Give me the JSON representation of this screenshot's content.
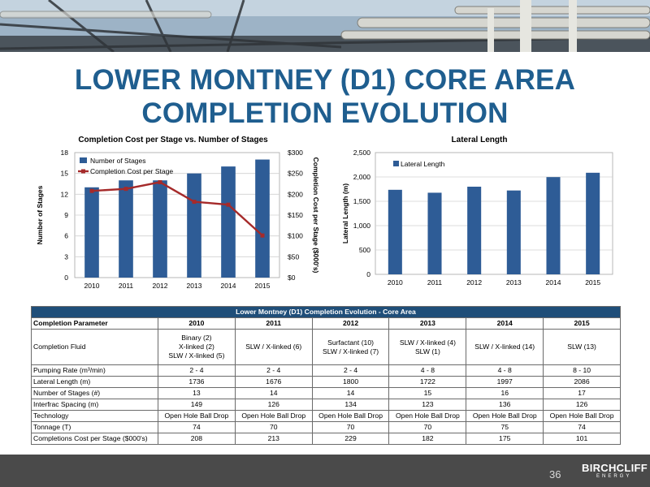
{
  "slide": {
    "title_line1": "LOWER MONTNEY (D1) CORE AREA",
    "title_line2": "COMPLETION EVOLUTION",
    "page_number": "36",
    "logo_main": "BIRCHCLIFF",
    "logo_sub": "ENERGY"
  },
  "chart_data": [
    {
      "type": "bar",
      "title": "Completion Cost per Stage vs. Number of Stages",
      "categories": [
        "2010",
        "2011",
        "2012",
        "2013",
        "2014",
        "2015"
      ],
      "series": [
        {
          "name": "Number of Stages",
          "type": "bar",
          "axis": "left",
          "values": [
            13,
            14,
            14,
            15,
            16,
            17
          ],
          "color": "#2e5c96"
        },
        {
          "name": "Completion Cost per Stage",
          "type": "line",
          "axis": "right",
          "values": [
            208,
            213,
            229,
            182,
            175,
            101
          ],
          "color": "#a52a2a"
        }
      ],
      "ylabel": "Number of Stages",
      "ylim": [
        0,
        18
      ],
      "yticks": [
        "0",
        "3",
        "6",
        "9",
        "12",
        "15",
        "18"
      ],
      "y2label": "Completion Cost per Stage ($000's)",
      "y2lim": [
        0,
        300
      ],
      "y2ticks": [
        "$0",
        "$50",
        "$100",
        "$150",
        "$200",
        "$250",
        "$300"
      ],
      "legend": "top-left",
      "grid": true
    },
    {
      "type": "bar",
      "title": "Lateral Length",
      "categories": [
        "2010",
        "2011",
        "2012",
        "2013",
        "2014",
        "2015"
      ],
      "series": [
        {
          "name": "Lateral Length",
          "values": [
            1736,
            1676,
            1800,
            1722,
            1997,
            2086
          ],
          "color": "#2e5c96"
        }
      ],
      "ylabel": "Lateral Length (m)",
      "ylim": [
        0,
        2500
      ],
      "yticks": [
        "0",
        "500",
        "1,000",
        "1,500",
        "2,000",
        "2,500"
      ],
      "legend": "top-left",
      "grid": true
    }
  ],
  "table": {
    "title": "Lower Montney (D1) Completion Evolution - Core Area",
    "headers": [
      "Completion Parameter",
      "2010",
      "2011",
      "2012",
      "2013",
      "2014",
      "2015"
    ],
    "rows": [
      {
        "label": "Completion Fluid",
        "cells": [
          "Binary (2)\nX-linked (2)\nSLW / X-linked (5)",
          "SLW / X-linked (6)",
          "Surfactant (10)\nSLW / X-linked (7)",
          "SLW / X-linked (4)\nSLW (1)",
          "SLW / X-linked (14)",
          "SLW (13)"
        ]
      },
      {
        "label": "Pumping Rate (m³/min)",
        "cells": [
          "2 - 4",
          "2 - 4",
          "2 - 4",
          "4 - 8",
          "4 - 8",
          "8 - 10"
        ]
      },
      {
        "label": "Lateral Length (m)",
        "cells": [
          "1736",
          "1676",
          "1800",
          "1722",
          "1997",
          "2086"
        ]
      },
      {
        "label": "Number of Stages (#)",
        "cells": [
          "13",
          "14",
          "14",
          "15",
          "16",
          "17"
        ]
      },
      {
        "label": "Interfrac Spacing (m)",
        "cells": [
          "149",
          "126",
          "134",
          "123",
          "136",
          "126"
        ]
      },
      {
        "label": "Technology",
        "cells": [
          "Open Hole Ball Drop",
          "Open Hole Ball Drop",
          "Open Hole Ball Drop",
          "Open Hole Ball Drop",
          "Open Hole Ball Drop",
          "Open Hole Ball Drop"
        ]
      },
      {
        "label": "Tonnage (T)",
        "cells": [
          "74",
          "70",
          "70",
          "70",
          "75",
          "74"
        ]
      },
      {
        "label": "Completions Cost per Stage ($000's)",
        "cells": [
          "208",
          "213",
          "229",
          "182",
          "175",
          "101"
        ]
      }
    ]
  }
}
